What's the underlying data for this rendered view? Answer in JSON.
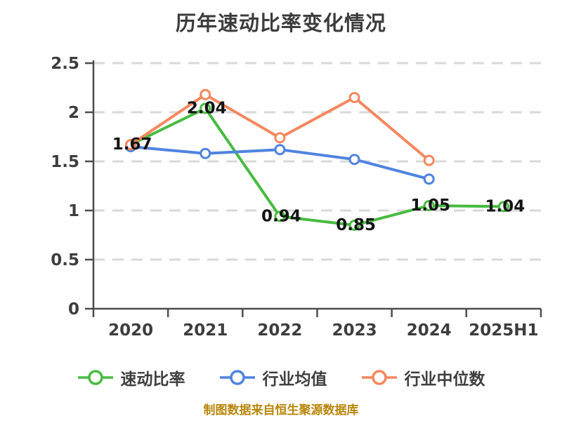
{
  "chart_data": {
    "type": "line",
    "title": "历年速动比率变化情况",
    "footnote": "制图数据来自恒生聚源数据库",
    "categories": [
      "2020",
      "2021",
      "2022",
      "2023",
      "2024",
      "2025H1"
    ],
    "series": [
      {
        "id": "quick-ratio",
        "name": "速动比率",
        "color": "#47bb40",
        "values": [
          1.67,
          2.04,
          0.94,
          0.85,
          1.05,
          1.04
        ],
        "point_labels": [
          "1.67",
          "2.04",
          "0.94",
          "0.85",
          "1.05",
          "1.04"
        ]
      },
      {
        "id": "industry-average",
        "name": "行业均值",
        "color": "#5083e0",
        "values": [
          1.65,
          1.58,
          1.62,
          1.52,
          1.32,
          null
        ],
        "point_labels": null
      },
      {
        "id": "industry-median",
        "name": "行业中位数",
        "color": "#f5875f",
        "values": [
          1.67,
          2.18,
          1.74,
          2.15,
          1.51,
          null
        ],
        "point_labels": null
      }
    ],
    "ylim": [
      0,
      2.5
    ],
    "yticks": [
      0,
      0.5,
      1,
      1.5,
      2,
      2.5
    ],
    "grid": "dashed-horizontal",
    "legend_position": "bottom",
    "colors": {
      "background": "#ffffff",
      "title": "#3c3c3c",
      "axis": "#4c4c4c",
      "gridline": "#d9d9d9",
      "tick_label": "#3d3d3d",
      "data_label": "#141414",
      "marker_fill": "#ffffff",
      "footnote": "#b8860b"
    }
  }
}
